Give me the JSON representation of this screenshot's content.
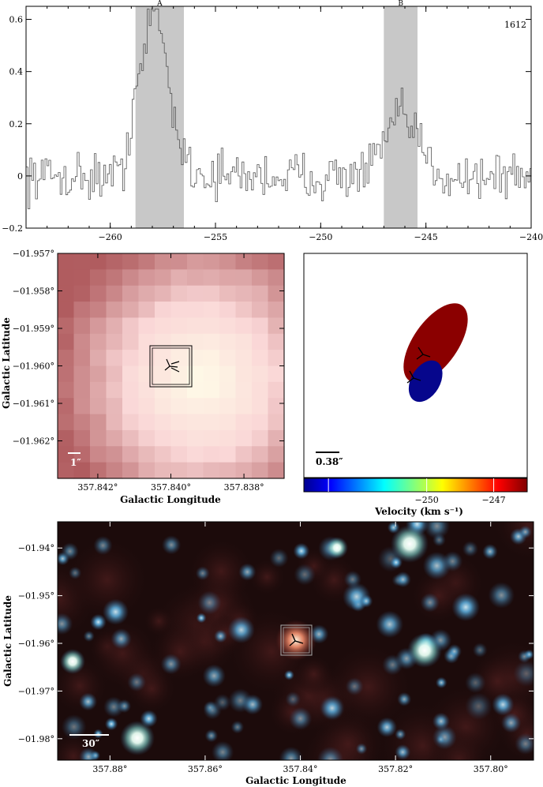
{
  "chart_data": [
    {
      "type": "line",
      "panel": "spectrum",
      "annotation": "1612",
      "xlim": [
        -264,
        -240
      ],
      "ylim": [
        -0.2,
        0.65
      ],
      "xticks": [
        "−260",
        "−255",
        "−250",
        "−245",
        "−240"
      ],
      "xtick_values": [
        -260,
        -255,
        -250,
        -245,
        -240
      ],
      "yticks": [
        "−0.2",
        "0",
        "0.2",
        "0.4",
        "0.6"
      ],
      "ytick_values": [
        -0.2,
        0,
        0.2,
        0.4,
        0.6
      ],
      "regions": [
        {
          "label": "A",
          "x0": -258.8,
          "x1": -256.5
        },
        {
          "label": "B",
          "x0": -247.0,
          "x1": -245.4
        }
      ],
      "step": 0.09,
      "peaks": [
        {
          "center": -258.0,
          "width": 0.5,
          "height": 0.58
        },
        {
          "center": -257.2,
          "width": 0.6,
          "height": 0.16
        },
        {
          "center": -246.2,
          "width": 0.8,
          "height": 0.22
        },
        {
          "center": -258.9,
          "width": 0.25,
          "height": 0.2
        }
      ],
      "noise": 0.075
    },
    {
      "type": "heatmap",
      "panel": "zoom-map",
      "xlabel": "Galactic Longitude",
      "ylabel": "Galactic Latitude",
      "xlim": [
        357.8431,
        357.8369
      ],
      "ylim": [
        -1.963,
        -1.957
      ],
      "xticks": [
        "357.842°",
        "357.840°",
        "357.838°"
      ],
      "xtick_values": [
        357.842,
        357.84,
        357.838
      ],
      "yticks": [
        "−01.957°",
        "−01.958°",
        "−01.959°",
        "−01.960°",
        "−01.961°",
        "−01.962°"
      ],
      "ytick_values": [
        -1.957,
        -1.958,
        -1.959,
        -1.96,
        -1.961,
        -1.962
      ],
      "scalebar_label": "1″",
      "grid": [
        14,
        14
      ],
      "center": [
        0.63,
        0.56
      ]
    },
    {
      "type": "scatter",
      "panel": "velocity-ellipses",
      "colorbar_label": "Velocity (km s⁻¹)",
      "colorbar_ticks": [
        "−250",
        "−247"
      ],
      "colorbar_tick_pos": [
        0.55,
        0.85
      ],
      "scalebar_label": "0.38″",
      "components": [
        {
          "color": "#8b0000",
          "cx": 0.59,
          "cy": 0.4,
          "rx": 0.1,
          "ry": 0.205,
          "rot": 35
        },
        {
          "color": "#06068c",
          "cx": 0.545,
          "cy": 0.57,
          "rx": 0.065,
          "ry": 0.1,
          "rot": 30
        }
      ]
    },
    {
      "type": "heatmap",
      "panel": "wide-field",
      "xlabel": "Galactic Longitude",
      "ylabel": "Galactic Latitude",
      "xlim": [
        357.891,
        357.791
      ],
      "ylim": [
        -1.9845,
        -1.9345
      ],
      "xticks": [
        "357.88°",
        "357.86°",
        "357.84°",
        "357.82°",
        "357.80°"
      ],
      "xtick_values": [
        357.88,
        357.86,
        357.84,
        357.82,
        357.8
      ],
      "yticks": [
        "−01.94°",
        "−01.95°",
        "−01.96°",
        "−01.97°",
        "−01.98°"
      ],
      "ytick_values": [
        -1.94,
        -1.95,
        -1.96,
        -1.97,
        -1.98
      ],
      "scalebar_label": "30″"
    }
  ],
  "colors": {
    "shade": "#c8c8c8",
    "map_center": "#fffbe6",
    "map_edge": "#b05a5a",
    "field_bg": "#1a0a0a",
    "star": "#5fb0e0"
  }
}
